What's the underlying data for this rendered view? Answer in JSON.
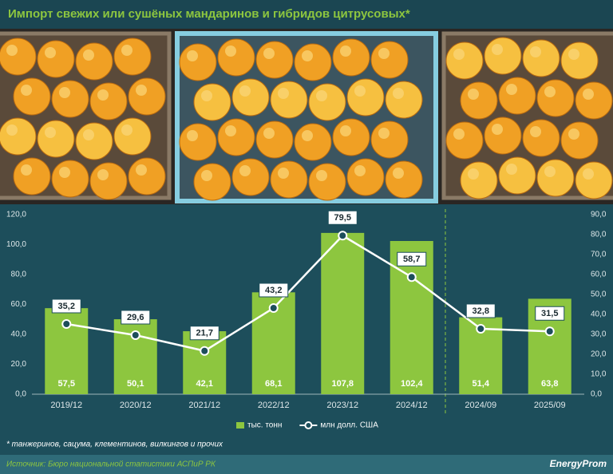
{
  "chart_data": {
    "type": "bar",
    "title": "Импорт свежих или сушёных мандаринов и гибридов цитрусовых*",
    "categories": [
      "2019/12",
      "2020/12",
      "2021/12",
      "2022/12",
      "2023/12",
      "2024/12",
      "2024/09",
      "2025/09"
    ],
    "series": [
      {
        "name": "тыс. тонн",
        "type": "bar",
        "color": "#8dc63f",
        "values": [
          57.5,
          50.1,
          42.1,
          68.1,
          107.8,
          102.4,
          51.4,
          63.8
        ],
        "value_labels": [
          "57,5",
          "50,1",
          "42,1",
          "68,1",
          "107,8",
          "102,4",
          "51,4",
          "63,8"
        ]
      },
      {
        "name": "млн долл. США",
        "type": "line",
        "axis": "y2",
        "color": "#ffffff",
        "values": [
          35.2,
          29.6,
          21.7,
          43.2,
          79.5,
          58.7,
          32.8,
          31.5
        ],
        "value_labels": [
          "35,2",
          "29,6",
          "21,7",
          "43,2",
          "79,5",
          "58,7",
          "32,8",
          "31,5"
        ]
      }
    ],
    "ylim": [
      0,
      120
    ],
    "yticks": [
      {
        "value": 0,
        "label": "0,0"
      },
      {
        "value": 20,
        "label": "20,0"
      },
      {
        "value": 40,
        "label": "40,0"
      },
      {
        "value": 60,
        "label": "60,0"
      },
      {
        "value": 80,
        "label": "80,0"
      },
      {
        "value": 100,
        "label": "100,0"
      },
      {
        "value": 120,
        "label": "120,0"
      }
    ],
    "y2lim": [
      0,
      90
    ],
    "y2ticks": [
      {
        "value": 0,
        "label": "0,0"
      },
      {
        "value": 10,
        "label": "10,0"
      },
      {
        "value": 20,
        "label": "20,0"
      },
      {
        "value": 30,
        "label": "30,0"
      },
      {
        "value": 40,
        "label": "40,0"
      },
      {
        "value": 50,
        "label": "50,0"
      },
      {
        "value": 60,
        "label": "60,0"
      },
      {
        "value": 70,
        "label": "70,0"
      },
      {
        "value": 80,
        "label": "80,0"
      },
      {
        "value": 90,
        "label": "90,0"
      }
    ],
    "grid": false
  },
  "footnote": "* танжеринов, сацума, клементинов, вилкингов и прочих",
  "source": "Источник: Бюро национальной статистики АСПиР РК",
  "logo": "EnergyProm"
}
